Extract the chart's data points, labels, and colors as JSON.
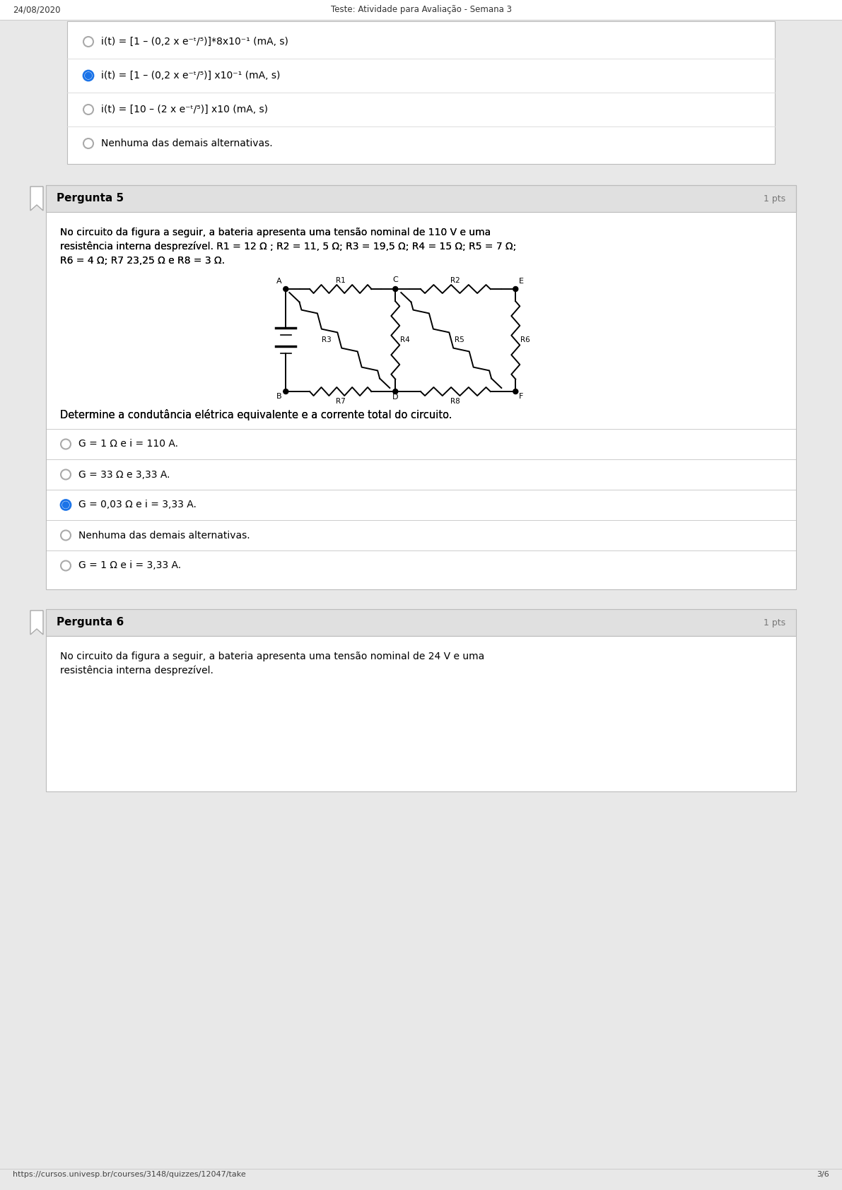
{
  "date": "24/08/2020",
  "header_title": "Teste: Atividade para Avaliação - Semana 3",
  "page_num": "3/6",
  "footer_url": "https://cursos.univesp.br/courses/3148/quizzes/12047/take",
  "bg_color": "#e8e8e8",
  "box_bg": "#ffffff",
  "header_bg": "#e0e0e0",
  "border_color": "#bbbbbb",
  "blue_color": "#1a73e8",
  "text_color": "#000000",
  "gray_text": "#666666",
  "q4_options": [
    {
      "text": "i(t) = [1 – (0,2 x e⁻ᵗ/⁵)]*8x10⁻¹ (mA, s)",
      "selected": false
    },
    {
      "text": "i(t) = [1 – (0,2 x e⁻ᵗ/⁵)] x10⁻¹ (mA, s)",
      "selected": true
    },
    {
      "text": "i(t) = [10 – (2 x e⁻ᵗ/⁵)] x10 (mA, s)",
      "selected": false
    },
    {
      "text": "Nenhuma das demais alternativas.",
      "selected": false
    }
  ],
  "q5_title": "Pergunta 5",
  "q5_pts": "1 pts",
  "q5_text_line1": "No circuito da figura a seguir, a bateria apresenta uma tensão nominal de 110 V e uma",
  "q5_text_line2": "resistência interna desprezível. R1 = 12 Ω ; R2 = 11, 5 Ω; R3 = 19,5 Ω; R4 = 15 Ω; R5 = 7 Ω;",
  "q5_text_line3": "R6 = 4 Ω; R7 23,25 Ω e R8 = 3 Ω.",
  "q5_question": "Determine a condutância elétrica equivalente e a corrente total do circuito.",
  "q5_options": [
    {
      "text": "G = 1 Ω e i = 110 A.",
      "selected": false
    },
    {
      "text": "G = 33 Ω e 3,33 A.",
      "selected": false
    },
    {
      "text": "G = 0,03 Ω e i = 3,33 A.",
      "selected": true
    },
    {
      "text": "Nenhuma das demais alternativas.",
      "selected": false
    },
    {
      "text": "G = 1 Ω e i = 3,33 A.",
      "selected": false
    }
  ],
  "q6_title": "Pergunta 6",
  "q6_pts": "1 pts",
  "q6_text_line1": "No circuito da figura a seguir, a bateria apresenta uma tensão nominal de 24 V e uma",
  "q6_text_line2": "resistência interna desprezível."
}
